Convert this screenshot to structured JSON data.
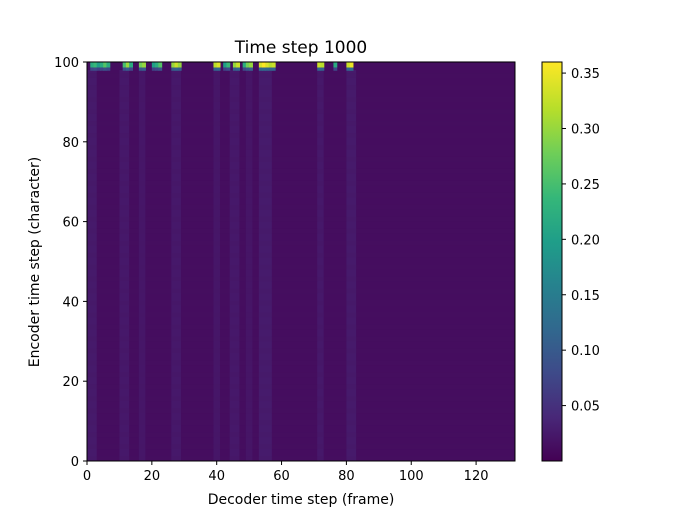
{
  "chart_data": {
    "type": "heatmap",
    "title": "Time step 1000",
    "xlabel": "Decoder time step (frame)",
    "ylabel": "Encoder time step (character)",
    "xlim": [
      0,
      132
    ],
    "ylim": [
      0,
      100
    ],
    "x_ticks": [
      0,
      20,
      40,
      60,
      80,
      100,
      120
    ],
    "x_tick_labels": [
      "0",
      "20",
      "40",
      "60",
      "80",
      "100",
      "120"
    ],
    "y_ticks": [
      0,
      20,
      40,
      60,
      80,
      100
    ],
    "y_tick_labels": [
      "0",
      "20",
      "40",
      "60",
      "80",
      "100"
    ],
    "colormap": "viridis",
    "colorbar": {
      "range": [
        0.0,
        0.36
      ],
      "ticks": [
        0.05,
        0.1,
        0.15,
        0.2,
        0.25,
        0.3,
        0.35
      ],
      "tick_labels": [
        "0.05",
        "0.10",
        "0.15",
        "0.20",
        "0.25",
        "0.30",
        "0.35"
      ]
    },
    "background_value": 0.012,
    "bright_top_columns": [
      {
        "x": 1,
        "value": 0.22
      },
      {
        "x": 2,
        "value": 0.24
      },
      {
        "x": 3,
        "value": 0.2
      },
      {
        "x": 4,
        "value": 0.22
      },
      {
        "x": 5,
        "value": 0.26
      },
      {
        "x": 6,
        "value": 0.22
      },
      {
        "x": 11,
        "value": 0.25
      },
      {
        "x": 12,
        "value": 0.3
      },
      {
        "x": 13,
        "value": 0.22
      },
      {
        "x": 16,
        "value": 0.28
      },
      {
        "x": 17,
        "value": 0.3
      },
      {
        "x": 20,
        "value": 0.2
      },
      {
        "x": 21,
        "value": 0.22
      },
      {
        "x": 22,
        "value": 0.26
      },
      {
        "x": 26,
        "value": 0.3
      },
      {
        "x": 27,
        "value": 0.33
      },
      {
        "x": 28,
        "value": 0.3
      },
      {
        "x": 39,
        "value": 0.32
      },
      {
        "x": 40,
        "value": 0.34
      },
      {
        "x": 42,
        "value": 0.2
      },
      {
        "x": 43,
        "value": 0.24
      },
      {
        "x": 45,
        "value": 0.3
      },
      {
        "x": 46,
        "value": 0.33
      },
      {
        "x": 48,
        "value": 0.22
      },
      {
        "x": 49,
        "value": 0.28
      },
      {
        "x": 50,
        "value": 0.3
      },
      {
        "x": 53,
        "value": 0.34
      },
      {
        "x": 54,
        "value": 0.36
      },
      {
        "x": 55,
        "value": 0.34
      },
      {
        "x": 56,
        "value": 0.32
      },
      {
        "x": 57,
        "value": 0.33
      },
      {
        "x": 71,
        "value": 0.33
      },
      {
        "x": 72,
        "value": 0.32
      },
      {
        "x": 76,
        "value": 0.22
      },
      {
        "x": 80,
        "value": 0.33
      },
      {
        "x": 81,
        "value": 0.35
      }
    ],
    "vertical_bands": [
      {
        "from": 0,
        "to": 3,
        "value": 0.028
      },
      {
        "from": 10,
        "to": 13,
        "value": 0.026
      },
      {
        "from": 16,
        "to": 18,
        "value": 0.024
      },
      {
        "from": 26,
        "to": 29,
        "value": 0.026
      },
      {
        "from": 39,
        "to": 41,
        "value": 0.024
      },
      {
        "from": 44,
        "to": 47,
        "value": 0.026
      },
      {
        "from": 49,
        "to": 51,
        "value": 0.022
      },
      {
        "from": 53,
        "to": 57,
        "value": 0.03
      },
      {
        "from": 71,
        "to": 73,
        "value": 0.026
      },
      {
        "from": 80,
        "to": 83,
        "value": 0.028
      }
    ]
  }
}
